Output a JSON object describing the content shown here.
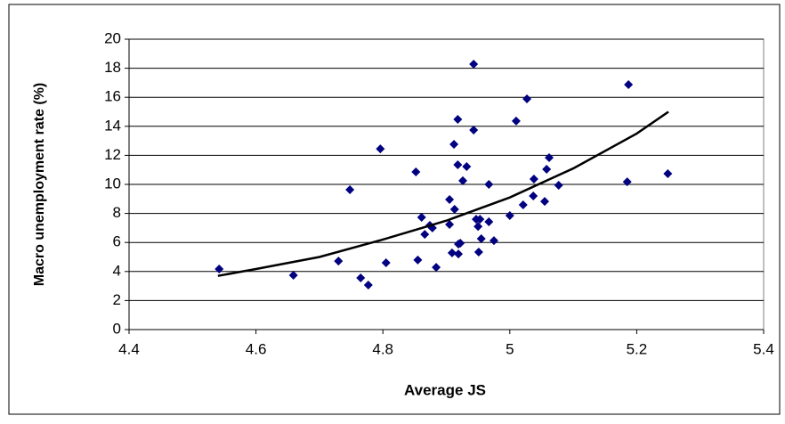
{
  "chart_data": {
    "type": "scatter",
    "x_label": "Average JS",
    "y_label": "Macro unemployment rate (%)",
    "xlim": [
      4.4,
      5.4
    ],
    "xticks": [
      4.4,
      4.6,
      4.8,
      5,
      5.2,
      5.4
    ],
    "ylim": [
      0,
      20
    ],
    "yticks": [
      0,
      2,
      4,
      6,
      8,
      10,
      12,
      14,
      16,
      18,
      20
    ],
    "grid": true,
    "series": [
      {
        "color": "#000080",
        "x": [
          4.542,
          4.659,
          4.73,
          4.748,
          4.765,
          4.777,
          4.796,
          4.805,
          4.852,
          4.855,
          4.861,
          4.866,
          4.874,
          4.878,
          4.884,
          4.905,
          4.905,
          4.909,
          4.912,
          4.913,
          4.918,
          4.918,
          4.919,
          4.919,
          4.922,
          4.926,
          4.932,
          4.943,
          4.943,
          4.947,
          4.95,
          4.951,
          4.953,
          4.955,
          4.967,
          4.967,
          4.975,
          5.0,
          5.01,
          5.021,
          5.027,
          5.037,
          5.038,
          5.055,
          5.058,
          5.062,
          5.077,
          5.187,
          5.185,
          5.249
        ],
        "values": [
          4.17,
          3.74,
          4.72,
          9.63,
          3.56,
          3.07,
          12.45,
          4.6,
          10.86,
          4.79,
          7.73,
          6.56,
          7.18,
          7.0,
          4.29,
          7.24,
          8.96,
          5.28,
          12.76,
          8.28,
          14.48,
          11.35,
          5.21,
          5.89,
          5.95,
          10.25,
          11.23,
          18.28,
          13.74,
          7.6,
          7.1,
          5.34,
          7.6,
          6.26,
          10.0,
          7.42,
          6.13,
          7.85,
          14.36,
          8.59,
          15.89,
          9.2,
          10.37,
          8.83,
          11.04,
          11.84,
          9.94,
          16.87,
          10.18,
          10.74
        ]
      },
      {
        "color": "#000000",
        "line": true,
        "x": [
          4.54,
          4.6,
          4.7,
          4.8,
          4.9,
          5.0,
          5.1,
          5.2,
          5.25
        ],
        "values": [
          3.7,
          4.17,
          5.0,
          6.2,
          7.5,
          9.1,
          11.1,
          13.5,
          15.0
        ]
      }
    ]
  }
}
